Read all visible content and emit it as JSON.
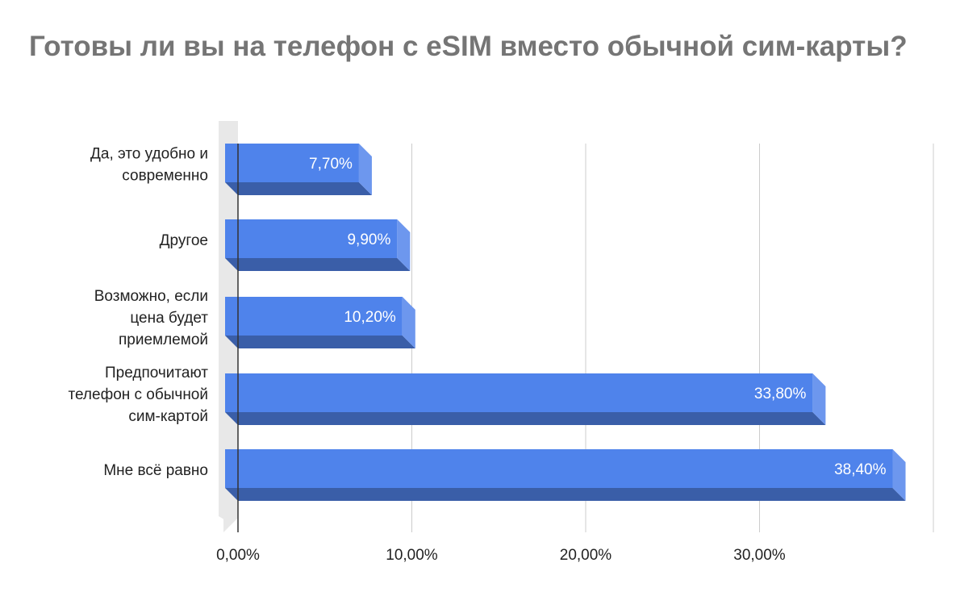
{
  "chart_data": {
    "type": "bar",
    "orientation": "horizontal",
    "style": "3d",
    "title": "Готовы ли вы на телефон с eSIM вместо обычной сим-карты?",
    "categories": [
      [
        "Да, это удобно и",
        "современно"
      ],
      [
        "Другое"
      ],
      [
        "Возможно, если",
        "цена будет",
        "приемлемой"
      ],
      [
        "Предпочитают",
        "телефон с обычной",
        "сим-картой"
      ],
      [
        "Мне всё равно"
      ]
    ],
    "values": [
      7.7,
      9.9,
      10.2,
      33.8,
      38.4
    ],
    "value_labels": [
      "7,70%",
      "9,90%",
      "10,20%",
      "33,80%",
      "38,40%"
    ],
    "xlim": [
      0,
      40
    ],
    "xticks": [
      0,
      10,
      20,
      30,
      40
    ],
    "xtick_labels": [
      "0,00%",
      "10,00%",
      "20,00%",
      "30,00%",
      ""
    ],
    "grid": true,
    "legend": "none",
    "colors": {
      "bar_front": "#4f83eb",
      "bar_top": "#3a5ea8",
      "bar_side": "#6d97ee",
      "grid": "#cccccc",
      "wall": "#e8e8e8",
      "axis": "#333333"
    }
  }
}
